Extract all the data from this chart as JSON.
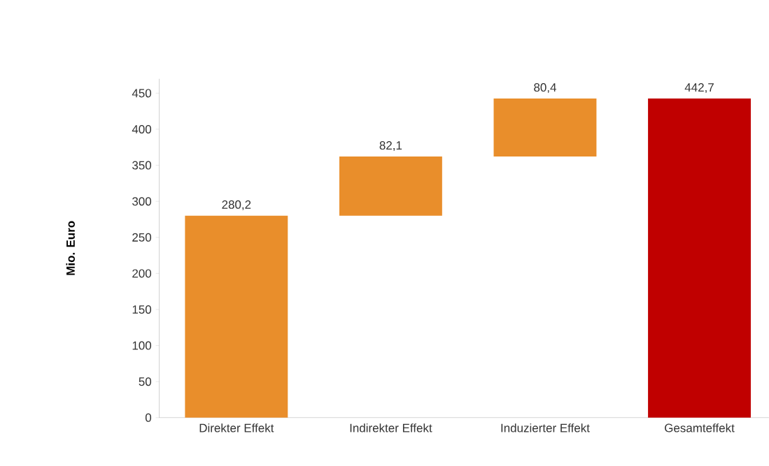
{
  "chart_data": {
    "type": "bar",
    "ylabel": "Mio. Euro",
    "categories": [
      "Direkter Effekt",
      "Indirekter Effekt",
      "Induzierter Effekt",
      "Gesamteffekt"
    ],
    "values": [
      280.2,
      82.1,
      80.4,
      442.7
    ],
    "base": [
      0,
      280.2,
      362.3,
      0
    ],
    "colors": [
      "#e98e2b",
      "#e98e2b",
      "#e98e2b",
      "#c00000"
    ],
    "value_labels": [
      "280,2",
      "82,1",
      "80,4",
      "442,7"
    ],
    "ylim": [
      0,
      470
    ],
    "yticks": [
      0,
      50,
      100,
      150,
      200,
      250,
      300,
      350,
      400,
      450
    ],
    "grid": false
  }
}
